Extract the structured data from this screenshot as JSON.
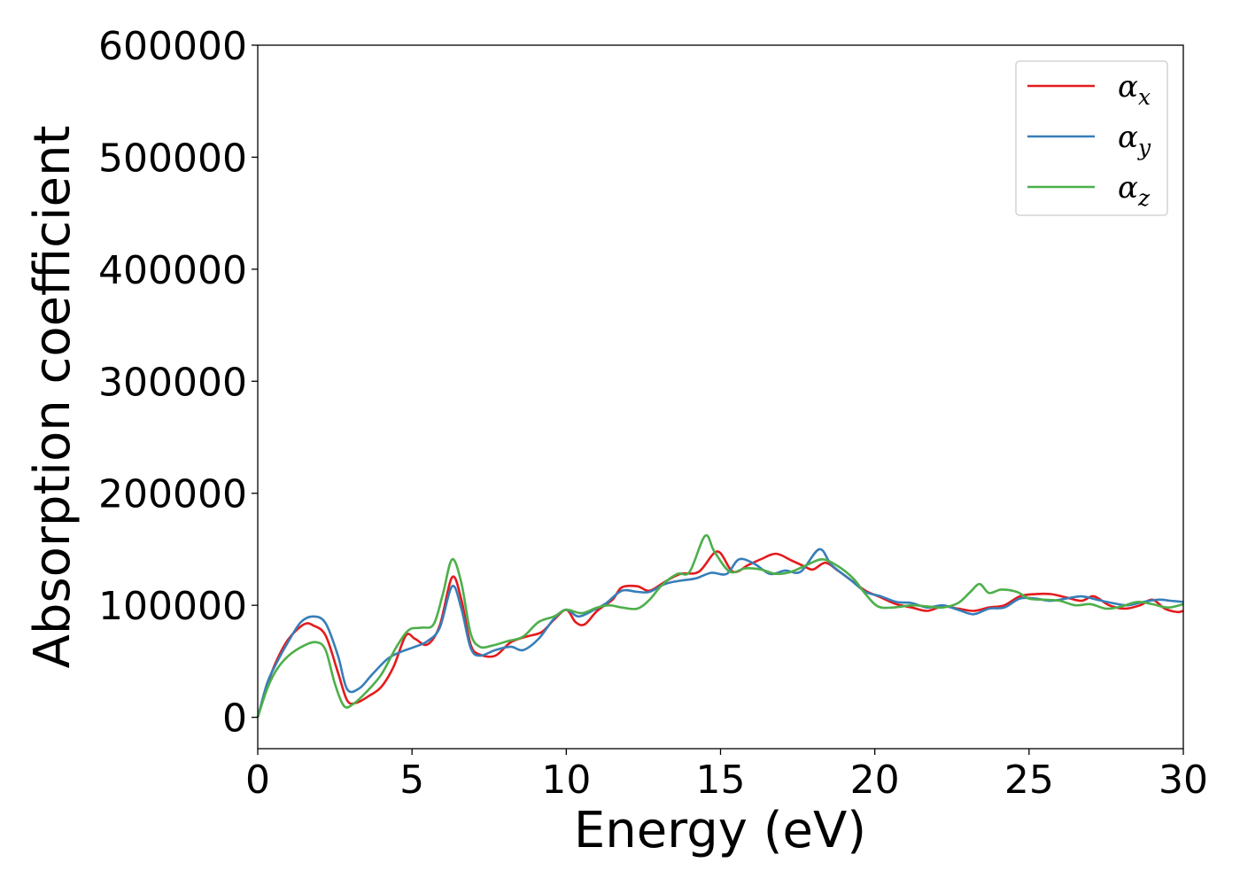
{
  "chart_data": {
    "type": "line",
    "title": "",
    "xlabel": "Energy (eV)",
    "ylabel": "Absorption coefficient",
    "xlim": [
      0,
      30
    ],
    "ylim": [
      -28000,
      600000
    ],
    "xticks": [
      0,
      5,
      10,
      15,
      20,
      25,
      30
    ],
    "xtick_labels": [
      "0",
      "5",
      "10",
      "15",
      "20",
      "25",
      "30"
    ],
    "yticks": [
      0,
      100000,
      200000,
      300000,
      400000,
      500000,
      600000
    ],
    "ytick_labels": [
      "0",
      "100000",
      "200000",
      "300000",
      "400000",
      "500000",
      "600000"
    ],
    "grid": false,
    "legend_position": "top-right",
    "series": [
      {
        "name": "α_x",
        "legend_base": "α",
        "legend_sub": "x",
        "color": "#e41a1c",
        "points": [
          [
            0,
            0
          ],
          [
            0.3,
            28000
          ],
          [
            0.6,
            50000
          ],
          [
            1.0,
            70000
          ],
          [
            1.5,
            83000
          ],
          [
            1.8,
            82000
          ],
          [
            2.2,
            73000
          ],
          [
            2.6,
            40000
          ],
          [
            2.9,
            15000
          ],
          [
            3.2,
            13000
          ],
          [
            3.6,
            19000
          ],
          [
            4.0,
            27000
          ],
          [
            4.4,
            45000
          ],
          [
            4.8,
            73000
          ],
          [
            5.1,
            70000
          ],
          [
            5.5,
            65000
          ],
          [
            5.9,
            82000
          ],
          [
            6.3,
            125000
          ],
          [
            6.6,
            105000
          ],
          [
            6.9,
            65000
          ],
          [
            7.2,
            56000
          ],
          [
            7.7,
            55000
          ],
          [
            8.2,
            67000
          ],
          [
            8.7,
            72000
          ],
          [
            9.2,
            76000
          ],
          [
            9.6,
            87000
          ],
          [
            10.0,
            96000
          ],
          [
            10.3,
            85000
          ],
          [
            10.6,
            83000
          ],
          [
            11.0,
            95000
          ],
          [
            11.5,
            105000
          ],
          [
            11.8,
            116000
          ],
          [
            12.3,
            117000
          ],
          [
            12.7,
            113000
          ],
          [
            13.2,
            121000
          ],
          [
            13.7,
            128000
          ],
          [
            14.3,
            130000
          ],
          [
            14.9,
            148000
          ],
          [
            15.4,
            130000
          ],
          [
            15.9,
            136000
          ],
          [
            16.3,
            141000
          ],
          [
            16.8,
            146000
          ],
          [
            17.3,
            140000
          ],
          [
            17.7,
            135000
          ],
          [
            18.0,
            132000
          ],
          [
            18.4,
            138000
          ],
          [
            18.8,
            131000
          ],
          [
            19.2,
            123000
          ],
          [
            19.7,
            113000
          ],
          [
            20.2,
            107000
          ],
          [
            20.7,
            101000
          ],
          [
            21.2,
            98000
          ],
          [
            21.7,
            95000
          ],
          [
            22.2,
            99000
          ],
          [
            22.7,
            97000
          ],
          [
            23.2,
            95000
          ],
          [
            23.7,
            98000
          ],
          [
            24.2,
            100000
          ],
          [
            24.7,
            108000
          ],
          [
            25.2,
            110000
          ],
          [
            25.7,
            110000
          ],
          [
            26.2,
            107000
          ],
          [
            26.7,
            104000
          ],
          [
            27.1,
            108000
          ],
          [
            27.6,
            100000
          ],
          [
            28.1,
            97000
          ],
          [
            28.6,
            100000
          ],
          [
            29.0,
            105000
          ],
          [
            29.4,
            97000
          ],
          [
            29.8,
            94000
          ],
          [
            30.0,
            95000
          ]
        ]
      },
      {
        "name": "α_y",
        "legend_base": "α",
        "legend_sub": "y",
        "color": "#377eb8",
        "points": [
          [
            0,
            0
          ],
          [
            0.3,
            30000
          ],
          [
            0.6,
            48000
          ],
          [
            1.0,
            68000
          ],
          [
            1.4,
            85000
          ],
          [
            1.8,
            90000
          ],
          [
            2.2,
            84000
          ],
          [
            2.6,
            55000
          ],
          [
            2.9,
            25000
          ],
          [
            3.3,
            26000
          ],
          [
            3.7,
            38000
          ],
          [
            4.2,
            52000
          ],
          [
            4.6,
            58000
          ],
          [
            5.1,
            63000
          ],
          [
            5.5,
            68000
          ],
          [
            5.9,
            80000
          ],
          [
            6.3,
            117000
          ],
          [
            6.6,
            97000
          ],
          [
            6.9,
            62000
          ],
          [
            7.2,
            55000
          ],
          [
            7.7,
            60000
          ],
          [
            8.2,
            63000
          ],
          [
            8.6,
            60000
          ],
          [
            9.1,
            70000
          ],
          [
            9.6,
            88000
          ],
          [
            10.0,
            96000
          ],
          [
            10.4,
            90000
          ],
          [
            10.9,
            96000
          ],
          [
            11.3,
            102000
          ],
          [
            11.8,
            113000
          ],
          [
            12.3,
            112000
          ],
          [
            12.7,
            112000
          ],
          [
            13.2,
            119000
          ],
          [
            13.7,
            122000
          ],
          [
            14.2,
            124000
          ],
          [
            14.7,
            129000
          ],
          [
            15.2,
            128000
          ],
          [
            15.6,
            141000
          ],
          [
            16.1,
            137000
          ],
          [
            16.6,
            128000
          ],
          [
            17.1,
            131000
          ],
          [
            17.6,
            130000
          ],
          [
            18.2,
            150000
          ],
          [
            18.6,
            136000
          ],
          [
            19.2,
            123000
          ],
          [
            19.7,
            112000
          ],
          [
            20.2,
            108000
          ],
          [
            20.7,
            103000
          ],
          [
            21.2,
            102000
          ],
          [
            21.7,
            98000
          ],
          [
            22.2,
            100000
          ],
          [
            22.7,
            96000
          ],
          [
            23.2,
            92000
          ],
          [
            23.7,
            97000
          ],
          [
            24.2,
            98000
          ],
          [
            24.7,
            106000
          ],
          [
            25.2,
            106000
          ],
          [
            25.7,
            104000
          ],
          [
            26.2,
            106000
          ],
          [
            26.7,
            108000
          ],
          [
            27.2,
            105000
          ],
          [
            27.7,
            102000
          ],
          [
            28.2,
            100000
          ],
          [
            28.7,
            103000
          ],
          [
            29.2,
            105000
          ],
          [
            29.6,
            104000
          ],
          [
            30.0,
            103000
          ]
        ]
      },
      {
        "name": "α_z",
        "legend_base": "α",
        "legend_sub": "z",
        "color": "#4daf4a",
        "points": [
          [
            0,
            0
          ],
          [
            0.3,
            25000
          ],
          [
            0.6,
            42000
          ],
          [
            1.0,
            55000
          ],
          [
            1.5,
            64000
          ],
          [
            1.9,
            67000
          ],
          [
            2.2,
            60000
          ],
          [
            2.5,
            30000
          ],
          [
            2.8,
            10000
          ],
          [
            3.1,
            12000
          ],
          [
            3.5,
            22000
          ],
          [
            4.0,
            38000
          ],
          [
            4.5,
            63000
          ],
          [
            4.9,
            78000
          ],
          [
            5.3,
            80000
          ],
          [
            5.7,
            83000
          ],
          [
            6.0,
            110000
          ],
          [
            6.3,
            141000
          ],
          [
            6.6,
            120000
          ],
          [
            6.9,
            75000
          ],
          [
            7.2,
            63000
          ],
          [
            7.6,
            64000
          ],
          [
            8.1,
            68000
          ],
          [
            8.6,
            72000
          ],
          [
            9.1,
            85000
          ],
          [
            9.6,
            90000
          ],
          [
            10.0,
            96000
          ],
          [
            10.5,
            93000
          ],
          [
            11.0,
            98000
          ],
          [
            11.4,
            100000
          ],
          [
            11.8,
            98000
          ],
          [
            12.3,
            97000
          ],
          [
            12.7,
            105000
          ],
          [
            13.1,
            118000
          ],
          [
            13.6,
            128000
          ],
          [
            14.0,
            130000
          ],
          [
            14.5,
            162000
          ],
          [
            14.8,
            148000
          ],
          [
            15.3,
            130000
          ],
          [
            15.8,
            133000
          ],
          [
            16.3,
            132000
          ],
          [
            16.8,
            128000
          ],
          [
            17.3,
            130000
          ],
          [
            17.8,
            136000
          ],
          [
            18.3,
            141000
          ],
          [
            18.8,
            135000
          ],
          [
            19.3,
            124000
          ],
          [
            19.7,
            110000
          ],
          [
            20.1,
            99000
          ],
          [
            20.6,
            98000
          ],
          [
            21.2,
            100000
          ],
          [
            21.7,
            99000
          ],
          [
            22.2,
            98000
          ],
          [
            22.7,
            102000
          ],
          [
            23.1,
            112000
          ],
          [
            23.4,
            119000
          ],
          [
            23.7,
            111000
          ],
          [
            24.1,
            114000
          ],
          [
            24.6,
            112000
          ],
          [
            25.0,
            106000
          ],
          [
            25.5,
            105000
          ],
          [
            26.0,
            104000
          ],
          [
            26.5,
            100000
          ],
          [
            27.0,
            101000
          ],
          [
            27.5,
            97000
          ],
          [
            28.0,
            99000
          ],
          [
            28.5,
            103000
          ],
          [
            29.0,
            101000
          ],
          [
            29.5,
            98000
          ],
          [
            30.0,
            101000
          ]
        ]
      }
    ]
  }
}
